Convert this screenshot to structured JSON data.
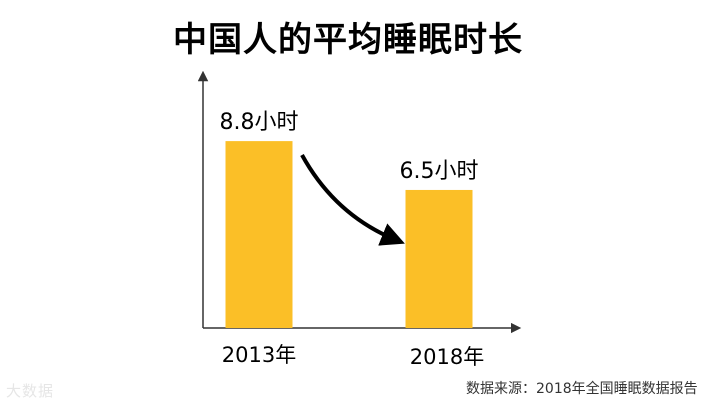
{
  "chart_data": {
    "type": "bar",
    "title": "中国人的平均睡眠时长",
    "categories": [
      "2013年",
      "2018年"
    ],
    "values": [
      8.8,
      6.5
    ],
    "data_labels": [
      "8.8小时",
      "6.5小时"
    ],
    "unit": "小时",
    "xlabel": "",
    "ylabel": "",
    "ylim": [
      0,
      10.5
    ],
    "grid": false,
    "legend": "none",
    "bar_color": "#fbbf27",
    "annotation": "downward-arrow"
  },
  "footer": {
    "source": "数据来源：2018年全国睡眠数据报告",
    "watermark": "大数据"
  },
  "colors": {
    "axis": "#333333",
    "text": "#000000",
    "watermark": "#e6e6e6"
  }
}
